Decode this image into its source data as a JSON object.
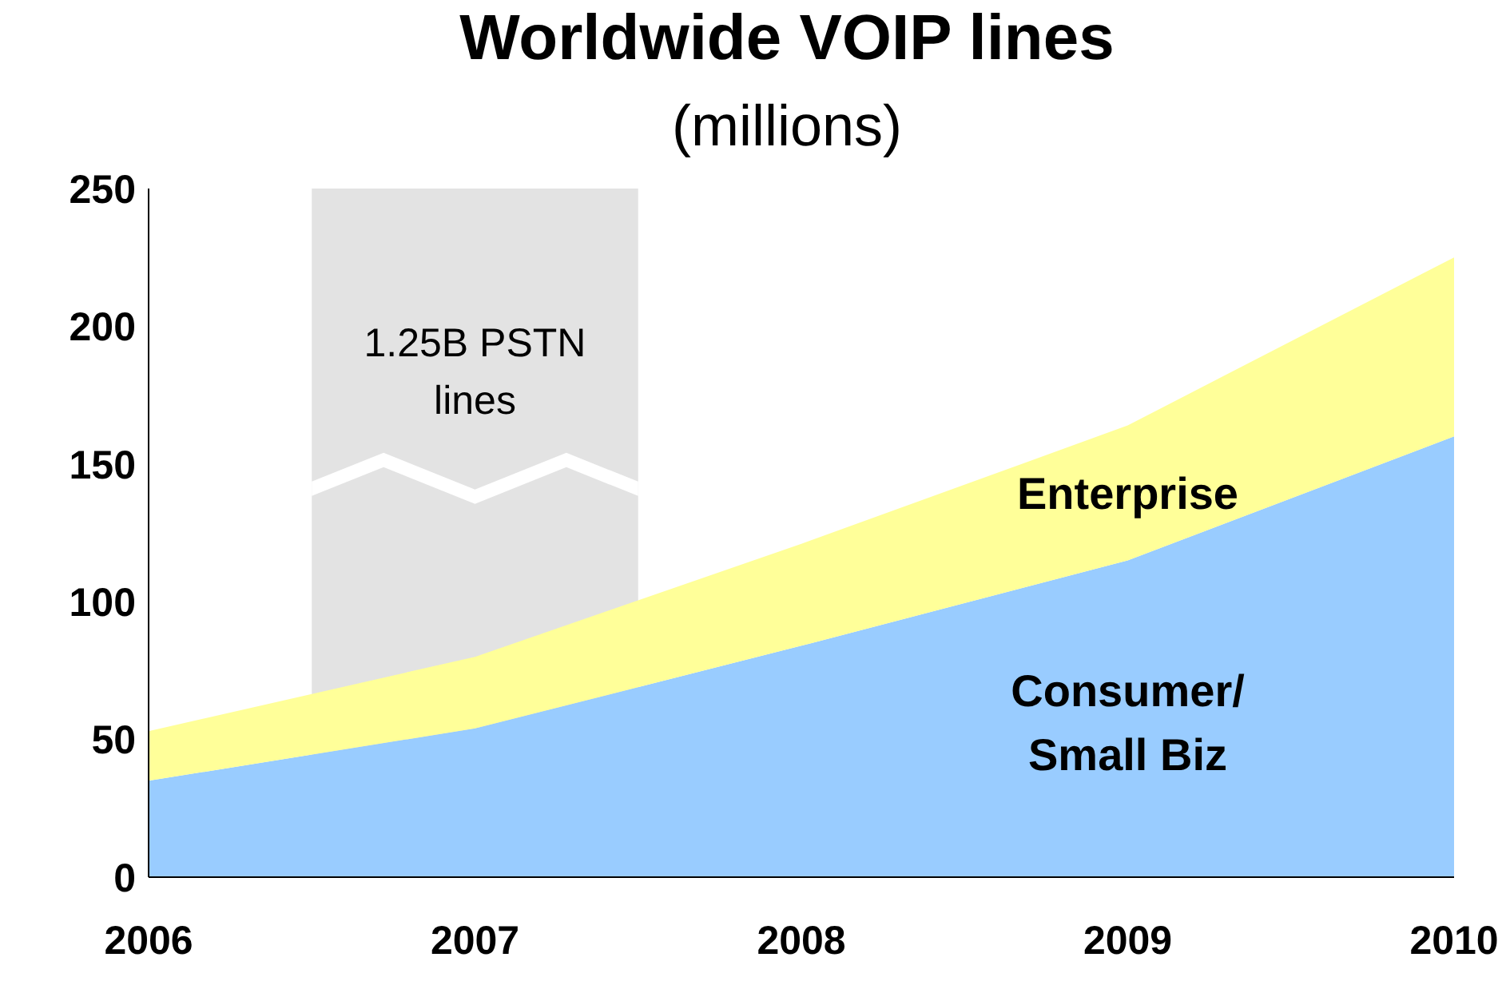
{
  "chart_data": {
    "type": "area",
    "title": "Worldwide VOIP lines",
    "subtitle": "(millions)",
    "stacked": true,
    "x": [
      2006,
      2007,
      2008,
      2009,
      2010
    ],
    "series": [
      {
        "name": "Consumer/\nSmall Biz",
        "color": "#99ccff",
        "values": [
          35,
          54,
          84,
          115,
          160
        ]
      },
      {
        "name": "Enterprise",
        "color": "#ffff99",
        "values": [
          18,
          26,
          37,
          49,
          65
        ]
      }
    ],
    "xlim": [
      2006,
      2010
    ],
    "xticks": [
      2006,
      2007,
      2008,
      2009,
      2010
    ],
    "ylim": [
      0,
      250
    ],
    "yticks": [
      0,
      50,
      100,
      150,
      200,
      250
    ],
    "bands": [
      {
        "axis": "x",
        "from": 2006.5,
        "to": 2007.5,
        "label": "1.25B PSTN lines",
        "color": "#e3e3e3"
      }
    ],
    "tick_labels": "xy"
  }
}
